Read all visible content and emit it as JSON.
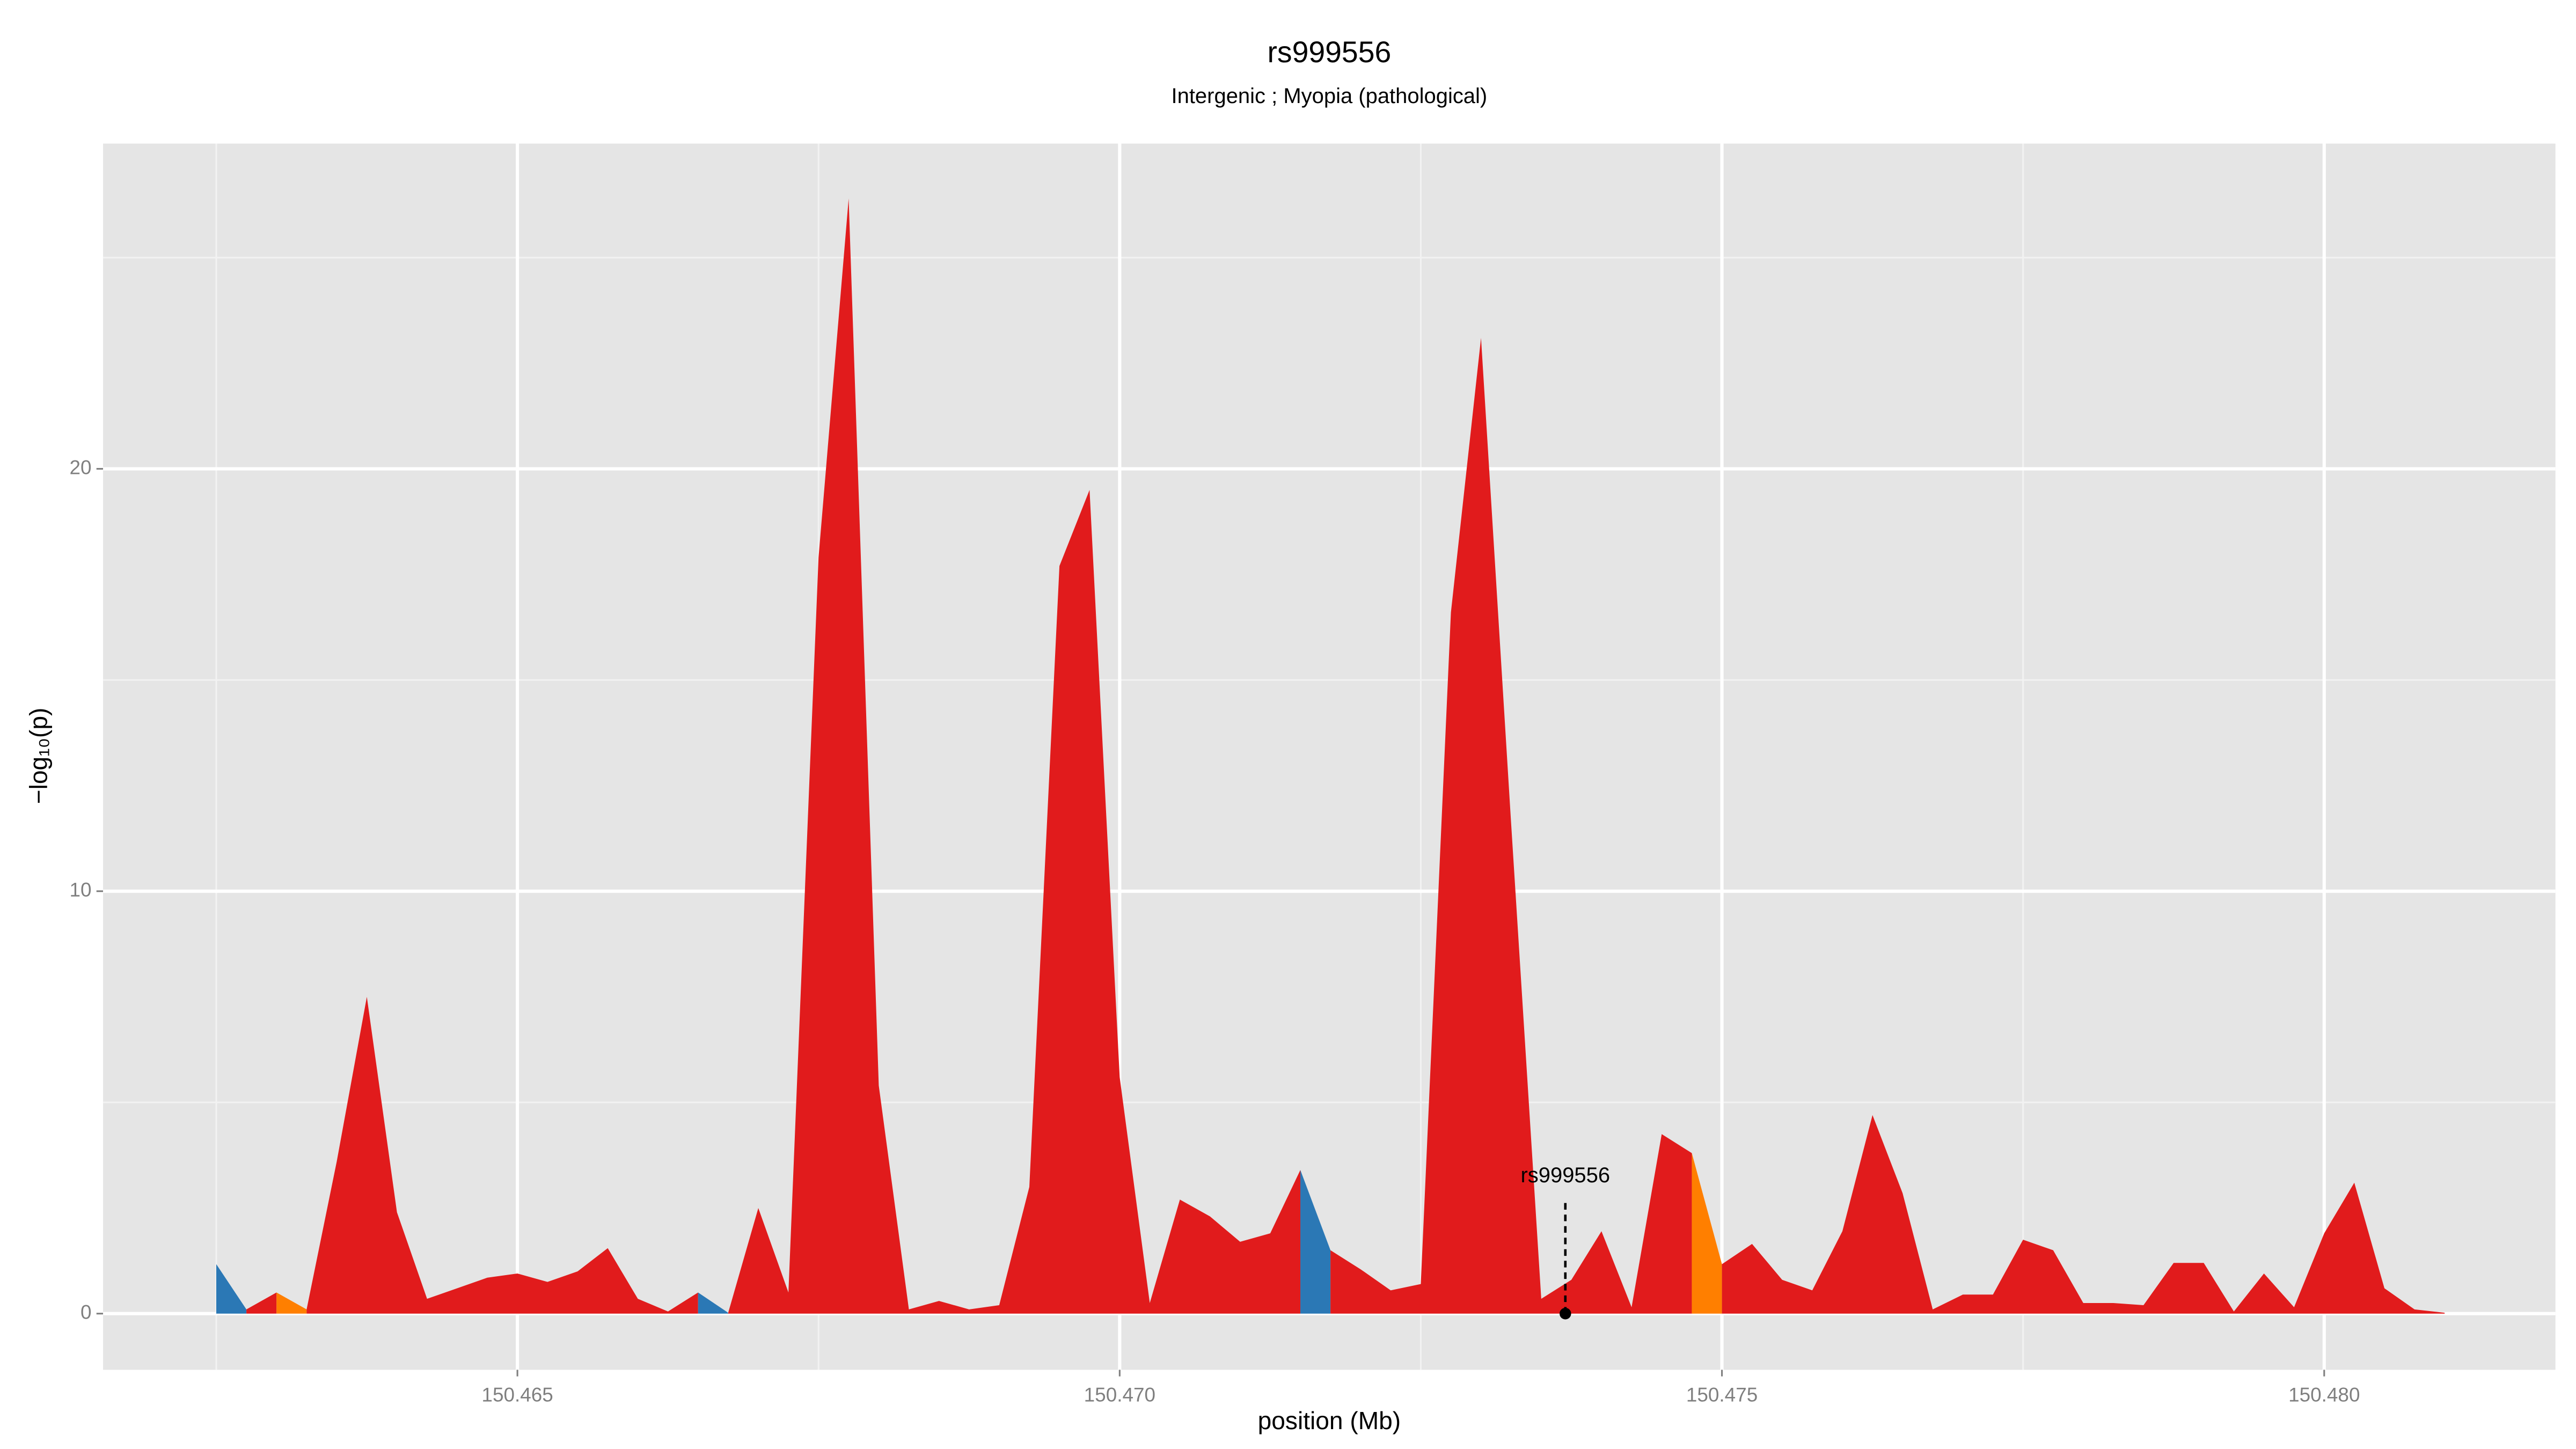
{
  "chart_data": {
    "type": "area",
    "title": "rs999556",
    "subtitle": "Intergenic ; Myopia (pathological)",
    "x_label": "position (Mb)",
    "y_label": "−log₁₀(p)",
    "xlim": [
      150.46156,
      150.48192
    ],
    "ylim": [
      -1.33,
      27.7
    ],
    "xticks": [
      150.465,
      {
        "value": 150.47,
        "label": "150.470"
      },
      150.475,
      {
        "value": 150.48,
        "label": "150.480"
      }
    ],
    "yticks": [
      0,
      10,
      20
    ],
    "minor_xticks": [
      150.4625,
      150.4675,
      150.4725,
      150.4775
    ],
    "minor_yticks": [
      5,
      15,
      25
    ],
    "grid": true,
    "background": "#e5e5e5",
    "series": [
      {
        "color": "#2b78b5",
        "x": [
          150.4625,
          150.46275
        ],
        "values": [
          1.17,
          0.1
        ]
      },
      {
        "color": "#e11b1c",
        "x": [
          150.46275,
          150.463
        ],
        "values": [
          0.1,
          0.5
        ]
      },
      {
        "color": "#ff7f00",
        "x": [
          150.463,
          150.46325
        ],
        "values": [
          0.5,
          0.1
        ]
      },
      {
        "color": "#e11b1c",
        "x": [
          150.46325,
          150.4635,
          150.46375,
          150.464,
          150.46425,
          150.4645,
          150.46475,
          150.465,
          150.46525,
          150.4655,
          150.46575,
          150.466,
          150.46625,
          150.4665
        ],
        "values": [
          0.1,
          3.6,
          7.5,
          2.4,
          0.35,
          0.6,
          0.85,
          0.95,
          0.75,
          1.0,
          1.55,
          0.35,
          0.05,
          0.5
        ]
      },
      {
        "color": "#2b78b5",
        "x": [
          150.4665,
          150.46675
        ],
        "values": [
          0.5,
          0.02
        ]
      },
      {
        "color": "#e11b1c",
        "x": [
          150.46675,
          150.467,
          150.46725,
          150.4675,
          150.46775,
          150.468,
          150.46825,
          150.4685,
          150.46875,
          150.469,
          150.46925,
          150.4695,
          150.46975,
          150.47,
          150.47025,
          150.4705,
          150.47075,
          150.471,
          150.47125,
          150.4715
        ],
        "values": [
          0.02,
          2.5,
          0.5,
          17.9,
          26.4,
          5.4,
          0.1,
          0.3,
          0.1,
          0.2,
          3.0,
          17.7,
          19.5,
          5.6,
          0.25,
          2.7,
          2.3,
          1.7,
          1.9,
          3.4
        ]
      },
      {
        "color": "#2b78b5",
        "x": [
          150.4715,
          150.47175
        ],
        "values": [
          3.4,
          1.5
        ]
      },
      {
        "color": "#e11b1c",
        "x": [
          150.47175,
          150.472,
          150.47225,
          150.4725,
          150.47275,
          150.473,
          150.47325,
          150.4735,
          150.47375,
          150.474,
          150.47425,
          150.4745,
          150.47475
        ],
        "values": [
          1.5,
          1.05,
          0.55,
          0.7,
          16.6,
          23.1,
          11.6,
          0.35,
          0.8,
          1.95,
          0.15,
          4.25,
          3.8
        ]
      },
      {
        "color": "#ff7f00",
        "x": [
          150.47475,
          150.475
        ],
        "values": [
          3.8,
          1.17
        ]
      },
      {
        "color": "#e11b1c",
        "x": [
          150.475,
          150.47525,
          150.4755,
          150.47575,
          150.476,
          150.47625,
          150.4765,
          150.47675,
          150.477,
          150.47725,
          150.4775,
          150.47775,
          150.478,
          150.47825,
          150.4785,
          150.47875,
          150.479,
          150.47925,
          150.4795,
          150.47975,
          150.48,
          150.48025,
          150.4805,
          150.48075,
          150.481
        ],
        "values": [
          1.17,
          1.65,
          0.8,
          0.55,
          1.95,
          4.7,
          2.85,
          0.1,
          0.45,
          0.45,
          1.75,
          1.5,
          0.25,
          0.25,
          0.2,
          1.2,
          1.2,
          0.05,
          0.95,
          0.15,
          1.9,
          3.1,
          0.6,
          0.1,
          0.02
        ]
      }
    ],
    "annotation": {
      "text": "rs999556",
      "x": 150.4737,
      "y": 0
    }
  }
}
